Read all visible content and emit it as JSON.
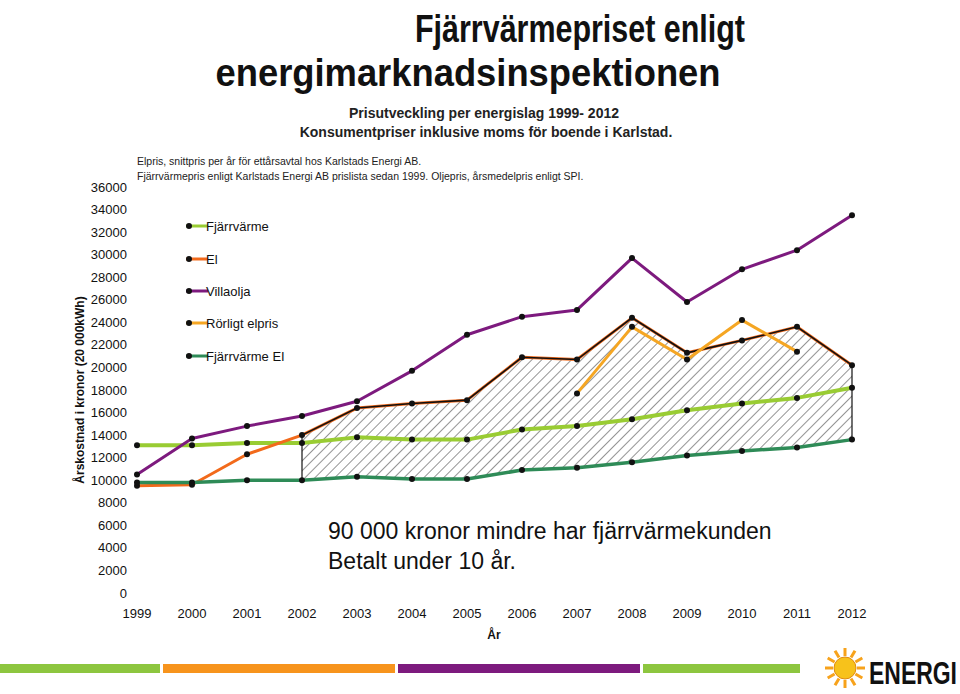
{
  "chart_data": {
    "type": "line",
    "title": [
      "Fjärrvärmepriset enligt",
      "energimarknadsinspektionen"
    ],
    "subtitle": [
      "Prisutveckling per energislag 1999- 2012",
      "Konsumentpriser inklusive moms för boende i Karlstad."
    ],
    "notes": [
      "Elpris, snittpris per år för ettårsavtal hos Karlstads Energi AB.",
      "Fjärrvärmepris enligt Karlstads Energi AB prislista sedan 1999. Oljepris, årsmedelpris enligt SPI."
    ],
    "annotation": [
      "90 000 kronor mindre har fjärrvärmekunden",
      "Betalt under 10 år."
    ],
    "y_label": "Årskostnad i kronor (20 000kWh)",
    "x_label": "År",
    "logo": "ENERGI",
    "categories": [
      "1999",
      "2000",
      "2001",
      "2002",
      "2003",
      "2004",
      "2005",
      "2006",
      "2007",
      "2008",
      "2009",
      "2010",
      "2011",
      "2012"
    ],
    "series": [
      {
        "name": "Fjärrvärme",
        "color": "#99cc33",
        "marker": "circle",
        "values": [
          13100,
          13100,
          13300,
          13300,
          13800,
          13600,
          13600,
          14500,
          14800,
          15400,
          16200,
          16800,
          17300,
          18200
        ]
      },
      {
        "name": "El",
        "color": "#f26a1b",
        "marker": "circle",
        "values": [
          9500,
          9600,
          12300,
          14000,
          16400,
          16800,
          17100,
          20900,
          20700,
          24400,
          21300,
          22400,
          23600,
          20200
        ]
      },
      {
        "name": "Villaolja",
        "color": "#7d1a7e",
        "marker": "circle",
        "values": [
          10500,
          13700,
          14800,
          15700,
          17000,
          19700,
          22900,
          24500,
          25100,
          29700,
          25800,
          28700,
          30400,
          33500
        ]
      },
      {
        "name": "Rörligt elpris",
        "color": "#f5a623",
        "marker": "circle",
        "values": [
          null,
          null,
          null,
          null,
          null,
          null,
          null,
          null,
          17700,
          23600,
          20700,
          24200,
          21400,
          null
        ]
      },
      {
        "name": "Fjärrvärme EI",
        "color": "#2e8b57",
        "marker": "circle",
        "values": [
          9800,
          9800,
          10000,
          10000,
          10300,
          10100,
          10100,
          10900,
          11100,
          11600,
          12200,
          12600,
          12900,
          13600
        ]
      }
    ],
    "ylim": [
      0,
      36000
    ],
    "yticks": [
      0,
      2000,
      4000,
      6000,
      8000,
      10000,
      12000,
      14000,
      16000,
      18000,
      20000,
      22000,
      24000,
      26000,
      28000,
      30000,
      32000,
      34000,
      36000
    ],
    "grid": false,
    "legend": "top-left"
  }
}
